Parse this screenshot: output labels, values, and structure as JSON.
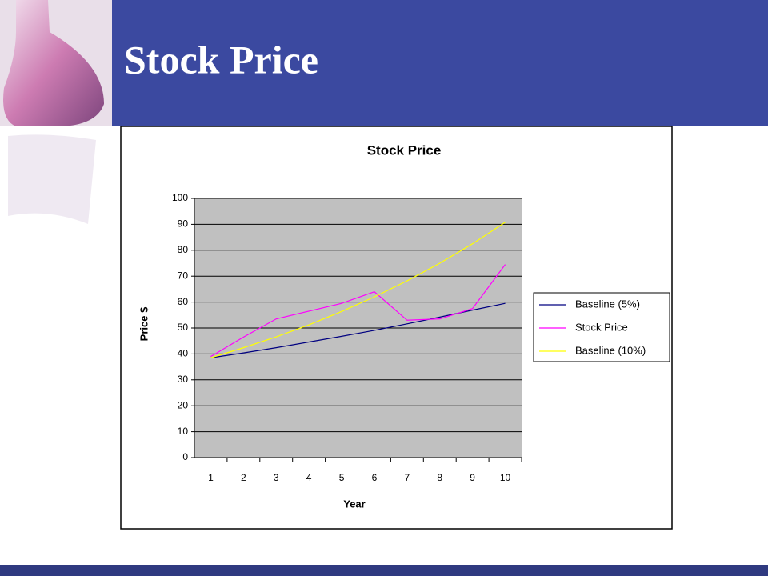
{
  "header": {
    "title": "Stock Price"
  },
  "chart_data": {
    "type": "line",
    "title": "Stock Price",
    "x_label": "Year",
    "y_label": "Price $",
    "categories": [
      "1",
      "2",
      "3",
      "4",
      "5",
      "6",
      "7",
      "8",
      "9",
      "10"
    ],
    "series": [
      {
        "name": "Baseline (5%)",
        "color": "#000080",
        "values": [
          38.5,
          40.4,
          42.4,
          44.6,
          46.8,
          49.1,
          51.6,
          54.2,
          56.9,
          59.5
        ]
      },
      {
        "name": "Stock Price",
        "color": "#ff00ff",
        "values": [
          39,
          46.5,
          53.5,
          56.5,
          59.5,
          64,
          53,
          53.5,
          57.5,
          74.5
        ]
      },
      {
        "name": "Baseline (10%)",
        "color": "#ffff00",
        "values": [
          38.5,
          42.4,
          46.6,
          51.2,
          56.4,
          62,
          68.2,
          75,
          82.5,
          90.8
        ]
      }
    ],
    "ylim": [
      0,
      100
    ],
    "yticks": [
      0,
      10,
      20,
      30,
      40,
      50,
      60,
      70,
      80,
      90,
      100
    ],
    "grid": true,
    "legend": "right"
  }
}
